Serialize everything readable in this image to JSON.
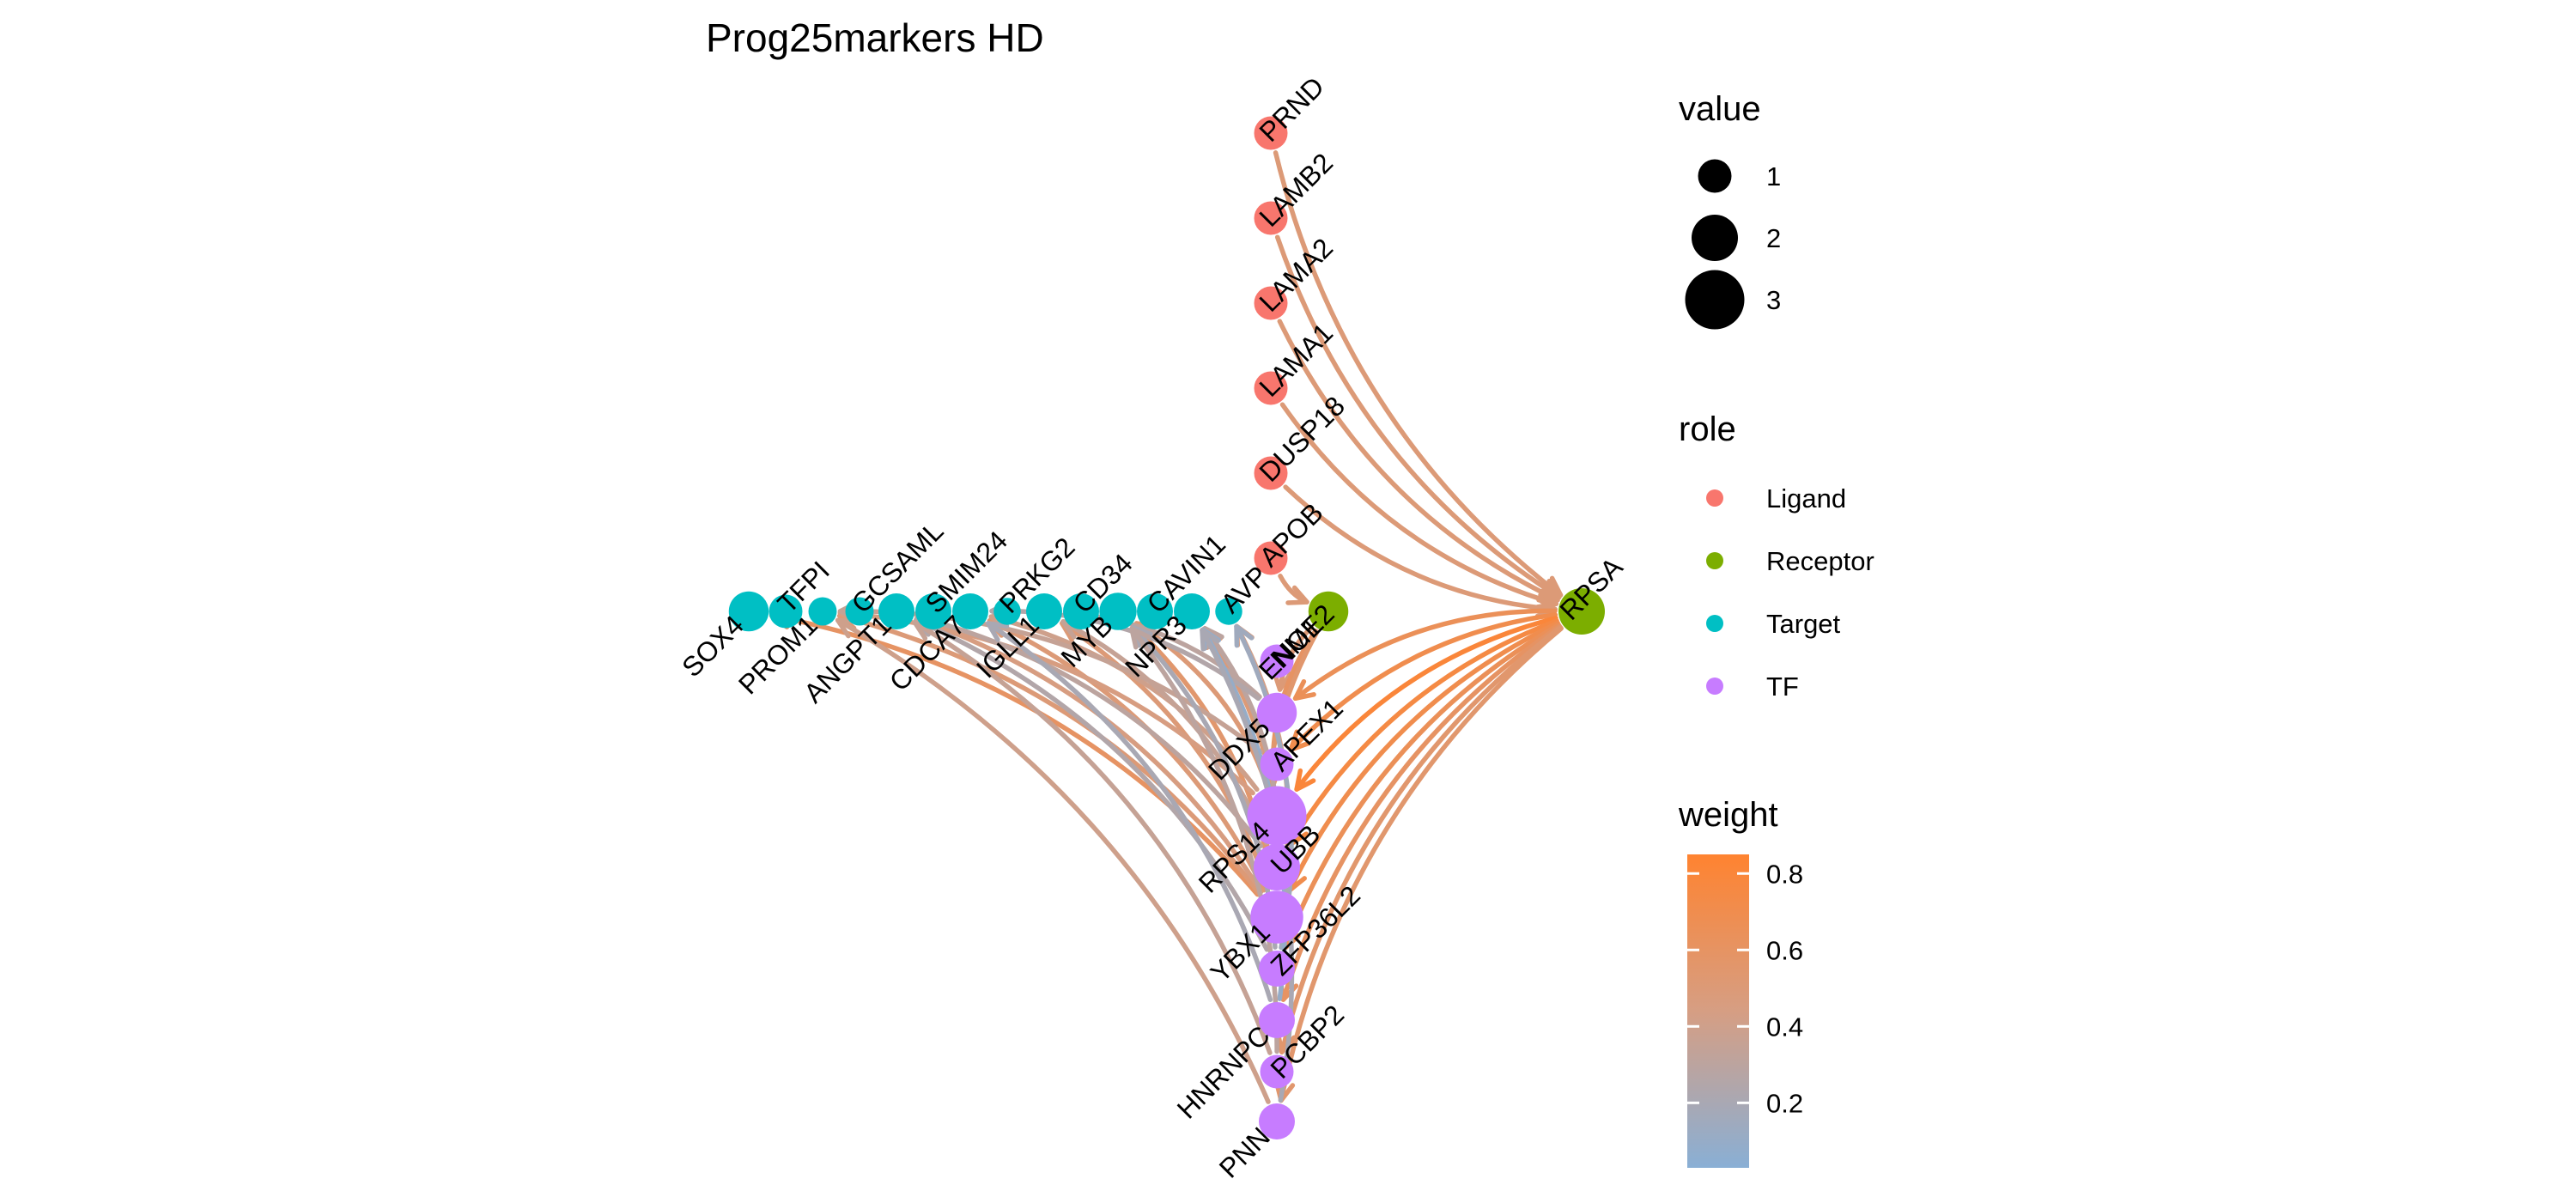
{
  "title": "Prog25markers HD",
  "colors": {
    "Ligand": "#F8766D",
    "Receptor": "#7CAE00",
    "Target": "#00BFC4",
    "TF": "#C77CFF",
    "weight_low": "#89AFD5",
    "weight_mid": "#D69E83",
    "weight_high": "#FF8330"
  },
  "legend": {
    "value": {
      "title": "value",
      "items": [
        {
          "label": "1",
          "value": 1
        },
        {
          "label": "2",
          "value": 2
        },
        {
          "label": "3",
          "value": 3
        }
      ]
    },
    "role": {
      "title": "role",
      "items": [
        {
          "label": "Ligand",
          "role": "Ligand"
        },
        {
          "label": "Receptor",
          "role": "Receptor"
        },
        {
          "label": "Target",
          "role": "Target"
        },
        {
          "label": "TF",
          "role": "TF"
        }
      ]
    },
    "weight": {
      "title": "weight",
      "range": [
        0.03,
        0.85
      ],
      "ticks": [
        {
          "label": "0.8",
          "value": 0.8
        },
        {
          "label": "0.6",
          "value": 0.6
        },
        {
          "label": "0.4",
          "value": 0.4
        },
        {
          "label": "0.2",
          "value": 0.2
        }
      ]
    }
  },
  "nodes": {
    "ligands": [
      {
        "id": "PRND",
        "label": "PRND",
        "role": "Ligand",
        "value": 1
      },
      {
        "id": "LAMB2",
        "label": "LAMB2",
        "role": "Ligand",
        "value": 1
      },
      {
        "id": "LAMA2",
        "label": "LAMA2",
        "role": "Ligand",
        "value": 1
      },
      {
        "id": "LAMA1",
        "label": "LAMA1",
        "role": "Ligand",
        "value": 1
      },
      {
        "id": "DUSP18",
        "label": "DUSP18",
        "role": "Ligand",
        "value": 1
      },
      {
        "id": "APOB",
        "label": "APOB",
        "role": "Ligand",
        "value": 1
      }
    ],
    "receptor": {
      "id": "RPSA",
      "label": "RPSA",
      "role": "Receptor",
      "value": 2
    },
    "tfs": [
      {
        "id": "ENO1",
        "label": "ENO1",
        "role": "TF",
        "value": 1.5,
        "color": "#7CAE00"
      },
      {
        "id": "NME2",
        "label": "NME2",
        "role": "TF",
        "value": 1
      },
      {
        "id": "DDX5",
        "label": "DDX5",
        "role": "TF",
        "value": 1.5
      },
      {
        "id": "APEX1",
        "label": "APEX1",
        "role": "TF",
        "value": 1
      },
      {
        "id": "RPS14",
        "label": "RPS14",
        "role": "TF",
        "value": 3
      },
      {
        "id": "UBB",
        "label": "UBB",
        "role": "TF",
        "value": 2
      },
      {
        "id": "YBX1",
        "label": "YBX1",
        "role": "TF",
        "value": 2.5
      },
      {
        "id": "ZFP36L2",
        "label": "ZFP36L2",
        "role": "TF",
        "value": 1.2
      },
      {
        "id": "HNRNPC",
        "label": "HNRNPC",
        "role": "TF",
        "value": 1.2
      },
      {
        "id": "PCBP2",
        "label": "PCBP2",
        "role": "TF",
        "value": 1
      },
      {
        "id": "PNN",
        "label": "PNN",
        "role": "TF",
        "value": 1.2
      }
    ],
    "targets": [
      {
        "id": "SOX4",
        "label": "SOX4",
        "role": "Target",
        "value": 1.5
      },
      {
        "id": "TFPI",
        "label": "TFPI",
        "role": "Target",
        "value": 1
      },
      {
        "id": "PROM1",
        "label": "PROM1",
        "role": "Target",
        "value": 0.6
      },
      {
        "id": "GCSAML",
        "label": "GCSAML",
        "role": "Target",
        "value": 0.6
      },
      {
        "id": "ANGPT1",
        "label": "ANGPT1",
        "role": "Target",
        "value": 1.2
      },
      {
        "id": "SMIM24",
        "label": "SMIM24",
        "role": "Target",
        "value": 1.2
      },
      {
        "id": "CDCA7",
        "label": "CDCA7",
        "role": "Target",
        "value": 1.2
      },
      {
        "id": "PRKG2",
        "label": "PRKG2",
        "role": "Target",
        "value": 0.5
      },
      {
        "id": "IGLL1",
        "label": "IGLL1",
        "role": "Target",
        "value": 1.2
      },
      {
        "id": "CD34",
        "label": "CD34",
        "role": "Target",
        "value": 1.2
      },
      {
        "id": "MYB",
        "label": "MYB",
        "role": "Target",
        "value": 1.3
      },
      {
        "id": "CAVIN1",
        "label": "CAVIN1",
        "role": "Target",
        "value": 1.2
      },
      {
        "id": "NPR3",
        "label": "NPR3",
        "role": "Target",
        "value": 1.2
      },
      {
        "id": "AVP",
        "label": "AVP",
        "role": "Target",
        "value": 0.5
      }
    ]
  },
  "edges": [
    {
      "from": "PRND",
      "to": "RPSA",
      "weight": 0.5
    },
    {
      "from": "LAMB2",
      "to": "RPSA",
      "weight": 0.5
    },
    {
      "from": "LAMA2",
      "to": "RPSA",
      "weight": 0.5
    },
    {
      "from": "LAMA1",
      "to": "RPSA",
      "weight": 0.5
    },
    {
      "from": "DUSP18",
      "to": "RPSA",
      "weight": 0.5
    },
    {
      "from": "APOB",
      "to": "ENO1",
      "weight": 0.5
    },
    {
      "from": "RPSA",
      "to": "DDX5",
      "weight": 0.65
    },
    {
      "from": "RPSA",
      "to": "APEX1",
      "weight": 0.7
    },
    {
      "from": "RPSA",
      "to": "RPS14",
      "weight": 0.8
    },
    {
      "from": "RPSA",
      "to": "UBB",
      "weight": 0.75
    },
    {
      "from": "RPSA",
      "to": "YBX1",
      "weight": 0.7
    },
    {
      "from": "RPSA",
      "to": "ZFP36L2",
      "weight": 0.65
    },
    {
      "from": "RPSA",
      "to": "HNRNPC",
      "weight": 0.6
    },
    {
      "from": "RPSA",
      "to": "PCBP2",
      "weight": 0.55
    },
    {
      "from": "RPSA",
      "to": "PNN",
      "weight": 0.55
    },
    {
      "from": "ENO1",
      "to": "DDX5",
      "weight": 0.5
    },
    {
      "from": "ENO1",
      "to": "RPS14",
      "weight": 0.6
    },
    {
      "from": "ENO1",
      "to": "YBX1",
      "weight": 0.55
    },
    {
      "from": "YBX1",
      "to": "SOX4",
      "weight": 0.6
    },
    {
      "from": "YBX1",
      "to": "PROM1",
      "weight": 0.5
    },
    {
      "from": "YBX1",
      "to": "ANGPT1",
      "weight": 0.45
    },
    {
      "from": "YBX1",
      "to": "CDCA7",
      "weight": 0.5
    },
    {
      "from": "YBX1",
      "to": "IGLL1",
      "weight": 0.5
    },
    {
      "from": "YBX1",
      "to": "MYB",
      "weight": 0.55
    },
    {
      "from": "YBX1",
      "to": "NPR3",
      "weight": 0.5
    },
    {
      "from": "YBX1",
      "to": "AVP",
      "weight": 0.45
    },
    {
      "from": "RPS14",
      "to": "PROM1",
      "weight": 0.45
    },
    {
      "from": "RPS14",
      "to": "CDCA7",
      "weight": 0.4
    },
    {
      "from": "RPS14",
      "to": "MYB",
      "weight": 0.5
    },
    {
      "from": "UBB",
      "to": "ANGPT1",
      "weight": 0.3
    },
    {
      "from": "UBB",
      "to": "IGLL1",
      "weight": 0.35
    },
    {
      "from": "UBB",
      "to": "NPR3",
      "weight": 0.3
    },
    {
      "from": "DDX5",
      "to": "IGLL1",
      "weight": 0.3
    },
    {
      "from": "DDX5",
      "to": "CDCA7",
      "weight": 0.25
    },
    {
      "from": "APEX1",
      "to": "PROM1",
      "weight": 0.35
    },
    {
      "from": "ZFP36L2",
      "to": "ANGPT1",
      "weight": 0.25
    },
    {
      "from": "ZFP36L2",
      "to": "MYB",
      "weight": 0.2
    },
    {
      "from": "ZFP36L2",
      "to": "AVP",
      "weight": 0.15
    },
    {
      "from": "HNRNPC",
      "to": "CDCA7",
      "weight": 0.2
    },
    {
      "from": "HNRNPC",
      "to": "NPR3",
      "weight": 0.1
    },
    {
      "from": "PCBP2",
      "to": "ANGPT1",
      "weight": 0.35
    },
    {
      "from": "PCBP2",
      "to": "MYB",
      "weight": 0.3
    },
    {
      "from": "PNN",
      "to": "PROM1",
      "weight": 0.4
    },
    {
      "from": "PNN",
      "to": "NPR3",
      "weight": 0.2
    }
  ]
}
